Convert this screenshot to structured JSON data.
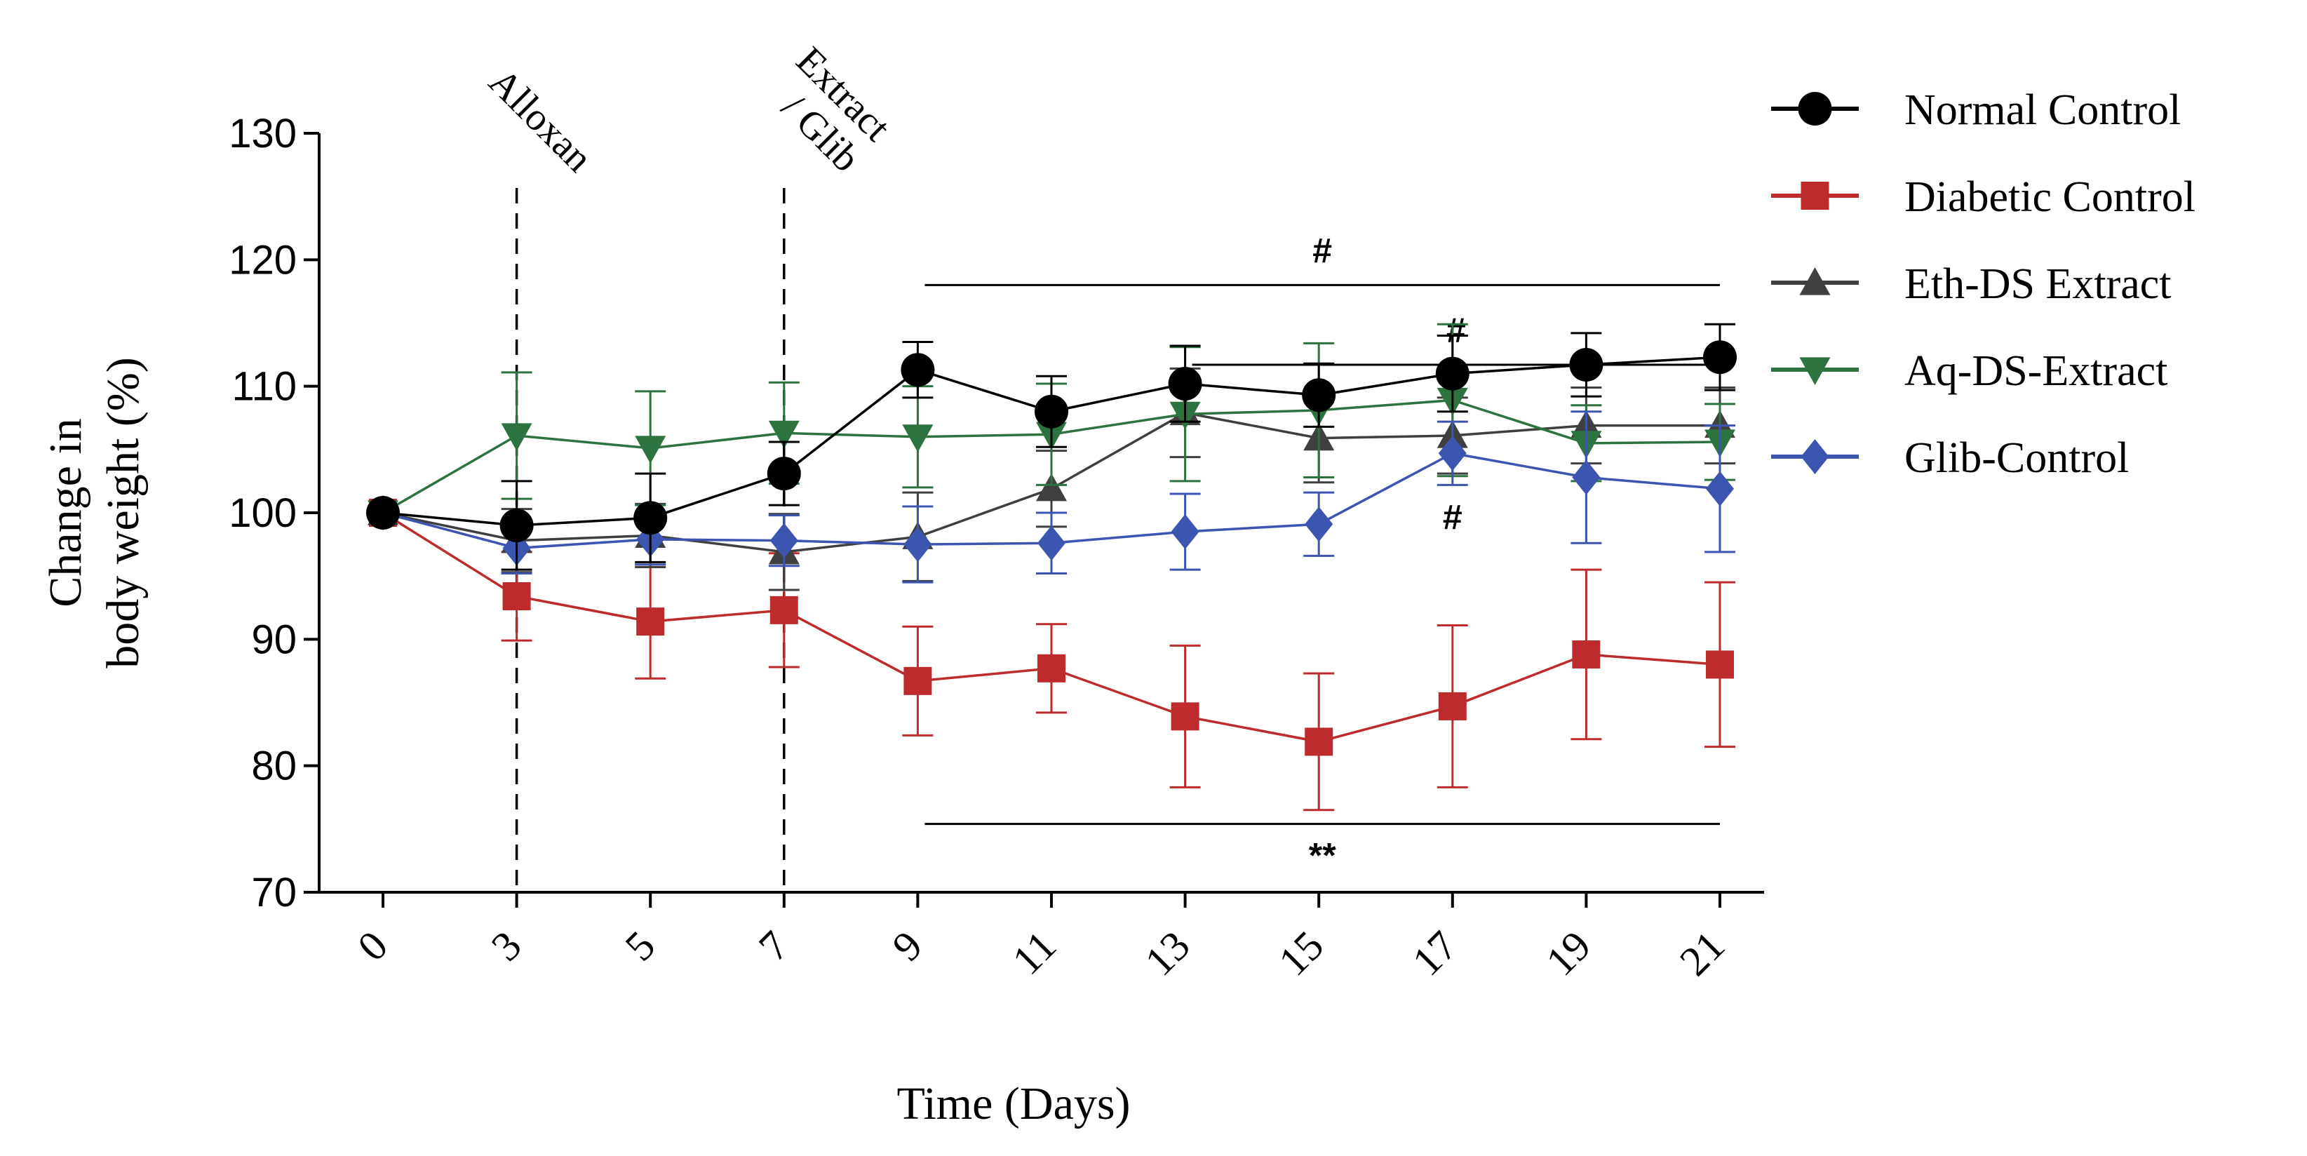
{
  "chart_data": {
    "type": "line",
    "title": "",
    "xlabel": "Time (Days)",
    "ylabel": [
      "Change in",
      "body weight (%)"
    ],
    "x": [
      0,
      3,
      5,
      7,
      9,
      11,
      13,
      15,
      17,
      19,
      21
    ],
    "x_tick_labels": [
      "0",
      "3",
      "5",
      "7",
      "9",
      "11",
      "13",
      "15",
      "17",
      "19",
      "21"
    ],
    "y_ticks": [
      70,
      80,
      90,
      100,
      110,
      120,
      130
    ],
    "y_tick_labels": [
      "70",
      "80",
      "90",
      "100",
      "110",
      "120",
      "130"
    ],
    "ylim": [
      70,
      130
    ],
    "grid": false,
    "legend_position": "top-right",
    "series": [
      {
        "name": "Normal Control",
        "color": "#000000",
        "marker": "circle",
        "values": [
          100,
          99.0,
          99.6,
          103.1,
          111.3,
          108.0,
          110.2,
          109.3,
          111.0,
          111.7,
          112.3
        ],
        "errors": [
          0,
          3.5,
          3.5,
          2.5,
          2.2,
          2.8,
          3.0,
          2.5,
          3.0,
          2.5,
          2.6
        ]
      },
      {
        "name": "Diabetic Control",
        "color": "#be2b2d",
        "marker": "square",
        "values": [
          100,
          93.4,
          91.4,
          92.3,
          86.7,
          87.7,
          83.9,
          81.9,
          84.7,
          88.8,
          88.0
        ],
        "errors": [
          0,
          3.5,
          4.5,
          4.5,
          4.3,
          3.5,
          5.6,
          5.4,
          6.4,
          6.7,
          6.5
        ]
      },
      {
        "name": "Eth-DS Extract",
        "color": "#3f3f3f",
        "marker": "triangle-up",
        "values": [
          100,
          97.8,
          98.2,
          96.9,
          98.1,
          101.9,
          107.9,
          105.9,
          106.1,
          106.9,
          106.9
        ],
        "errors": [
          0,
          2.5,
          2.5,
          3.0,
          3.5,
          3.0,
          3.5,
          3.5,
          3.0,
          3.0,
          3.0
        ]
      },
      {
        "name": "Aq-DS-Extract",
        "color": "#2d7340",
        "marker": "triangle-down",
        "values": [
          100,
          106.1,
          105.1,
          106.3,
          106.0,
          106.2,
          107.8,
          108.1,
          108.9,
          105.5,
          105.6
        ],
        "errors": [
          0,
          5.0,
          4.5,
          4.0,
          4.0,
          4.0,
          5.3,
          5.3,
          6.0,
          3.0,
          3.0
        ]
      },
      {
        "name": "Glib-Control",
        "color": "#3c55b0",
        "marker": "diamond",
        "values": [
          100,
          97.2,
          97.9,
          97.8,
          97.5,
          97.6,
          98.5,
          99.1,
          104.7,
          102.8,
          101.9
        ],
        "errors": [
          0,
          2.0,
          2.0,
          2.0,
          3.0,
          2.4,
          3.0,
          2.5,
          2.5,
          5.2,
          5.0
        ]
      }
    ],
    "vertical_markers": [
      {
        "x": 3,
        "label": [
          "Alloxan"
        ]
      },
      {
        "x": 7,
        "label": [
          "Extract",
          "/ Glib"
        ]
      }
    ],
    "significance": [
      {
        "label": "#",
        "x_start": 9,
        "x_end": 21,
        "y": 118.0
      },
      {
        "label": "#",
        "x_start": 13,
        "x_end": 21,
        "y": 111.7
      },
      {
        "label": "#",
        "x": 17,
        "y": 98.7
      },
      {
        "label": "**",
        "x_start": 9,
        "x_end": 21,
        "y": 75.4
      }
    ]
  }
}
